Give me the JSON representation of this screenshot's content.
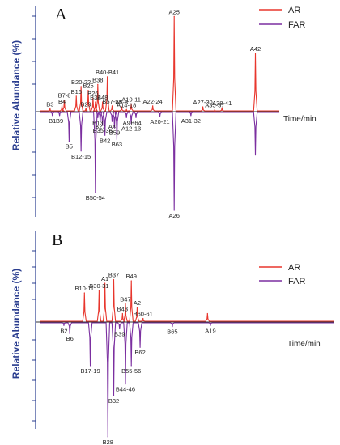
{
  "chart_data": [
    {
      "panel": "A",
      "type": "line",
      "ylabel": "Relative Abundance (%)",
      "xlabel": "Time/min",
      "legend_position": "top-right",
      "series": [
        {
          "name": "AR",
          "color": "#e8362d",
          "direction": "up",
          "peaks": [
            {
              "t": 0.04,
              "h": 0.03,
              "label": "B3"
            },
            {
              "t": 0.09,
              "h": 0.06,
              "label": "B4"
            },
            {
              "t": 0.1,
              "h": 0.12,
              "label": "B7-8"
            },
            {
              "t": 0.15,
              "h": 0.16,
              "label": "B16"
            },
            {
              "t": 0.17,
              "h": 0.26,
              "label": "B20-22"
            },
            {
              "t": 0.2,
              "h": 0.22,
              "label": "B25"
            },
            {
              "t": 0.22,
              "h": 0.14,
              "label": "B26"
            },
            {
              "t": 0.23,
              "h": 0.1,
              "label": "B34"
            },
            {
              "t": 0.19,
              "h": 0.03,
              "label": "B29"
            },
            {
              "t": 0.24,
              "h": 0.28,
              "label": "B38"
            },
            {
              "t": 0.26,
              "h": 0.1,
              "label": "B48"
            },
            {
              "t": 0.28,
              "h": 0.36,
              "label": "B40-B41"
            },
            {
              "t": 0.3,
              "h": 0.06,
              "label": "B57-58"
            },
            {
              "t": 0.34,
              "h": 0.05,
              "label": "A5-8"
            },
            {
              "t": 0.36,
              "h": 0.02,
              "label": "A14-18"
            },
            {
              "t": 0.38,
              "h": 0.08,
              "label": "A10-11"
            },
            {
              "t": 0.47,
              "h": 0.06,
              "label": "A22-24"
            },
            {
              "t": 0.56,
              "h": 0.98,
              "label": "A25"
            },
            {
              "t": 0.68,
              "h": 0.05,
              "label": "A27-30"
            },
            {
              "t": 0.73,
              "h": 0.02,
              "label": "A35-37"
            },
            {
              "t": 0.76,
              "h": 0.04,
              "label": "A38-41"
            },
            {
              "t": 0.9,
              "h": 0.6,
              "label": "A42"
            }
          ]
        },
        {
          "name": "FAR",
          "color": "#7b2fa0",
          "direction": "down",
          "peaks": [
            {
              "t": 0.05,
              "h": 0.04,
              "label": "B1"
            },
            {
              "t": 0.08,
              "h": 0.04,
              "label": "B9"
            },
            {
              "t": 0.12,
              "h": 0.3,
              "label": "B5"
            },
            {
              "t": 0.17,
              "h": 0.4,
              "label": "B12-15"
            },
            {
              "t": 0.23,
              "h": 0.82,
              "label": "B50-54"
            },
            {
              "t": 0.24,
              "h": 0.06,
              "label": "B13"
            },
            {
              "t": 0.25,
              "h": 0.1,
              "label": "B27"
            },
            {
              "t": 0.26,
              "h": 0.14,
              "label": "B35-36"
            },
            {
              "t": 0.27,
              "h": 0.24,
              "label": "B42"
            },
            {
              "t": 0.3,
              "h": 0.1,
              "label": "A4"
            },
            {
              "t": 0.31,
              "h": 0.16,
              "label": "B59"
            },
            {
              "t": 0.32,
              "h": 0.28,
              "label": "B63"
            },
            {
              "t": 0.36,
              "h": 0.06,
              "label": "A9"
            },
            {
              "t": 0.38,
              "h": 0.12,
              "label": "A12-13"
            },
            {
              "t": 0.4,
              "h": 0.06,
              "label": "B64"
            },
            {
              "t": 0.5,
              "h": 0.05,
              "label": "A20-21"
            },
            {
              "t": 0.56,
              "h": 1.0,
              "label": "A26"
            },
            {
              "t": 0.63,
              "h": 0.04,
              "label": "A31-32"
            },
            {
              "t": 0.9,
              "h": 0.44,
              "label": ""
            }
          ]
        }
      ]
    },
    {
      "panel": "B",
      "type": "line",
      "ylabel": "Relative Abundance (%)",
      "xlabel": "Time/min",
      "legend_position": "top-right",
      "series": [
        {
          "name": "AR",
          "color": "#e8362d",
          "direction": "up",
          "peaks": [
            {
              "t": 0.15,
              "h": 0.48,
              "label": "B10-11"
            },
            {
              "t": 0.2,
              "h": 0.52,
              "label": "B30-31"
            },
            {
              "t": 0.22,
              "h": 0.64,
              "label": "A1"
            },
            {
              "t": 0.25,
              "h": 0.7,
              "label": "B37"
            },
            {
              "t": 0.28,
              "h": 0.14,
              "label": "B43"
            },
            {
              "t": 0.29,
              "h": 0.3,
              "label": "B47"
            },
            {
              "t": 0.31,
              "h": 0.68,
              "label": "B49"
            },
            {
              "t": 0.33,
              "h": 0.24,
              "label": "A2"
            },
            {
              "t": 0.35,
              "h": 0.06,
              "label": "B60-61"
            },
            {
              "t": 0.57,
              "h": 0.14,
              "label": ""
            }
          ]
        },
        {
          "name": "FAR",
          "color": "#7b2fa0",
          "direction": "down",
          "peaks": [
            {
              "t": 0.08,
              "h": 0.03,
              "label": "B2"
            },
            {
              "t": 0.1,
              "h": 0.1,
              "label": "B6"
            },
            {
              "t": 0.17,
              "h": 0.38,
              "label": "B17-19"
            },
            {
              "t": 0.23,
              "h": 1.0,
              "label": "B28"
            },
            {
              "t": 0.25,
              "h": 0.64,
              "label": "B32"
            },
            {
              "t": 0.27,
              "h": 0.06,
              "label": "B39"
            },
            {
              "t": 0.29,
              "h": 0.54,
              "label": "B44-46"
            },
            {
              "t": 0.31,
              "h": 0.38,
              "label": "B55-56"
            },
            {
              "t": 0.34,
              "h": 0.22,
              "label": "B62"
            },
            {
              "t": 0.45,
              "h": 0.04,
              "label": "B65"
            },
            {
              "t": 0.58,
              "h": 0.03,
              "label": "A19"
            }
          ]
        }
      ]
    }
  ]
}
